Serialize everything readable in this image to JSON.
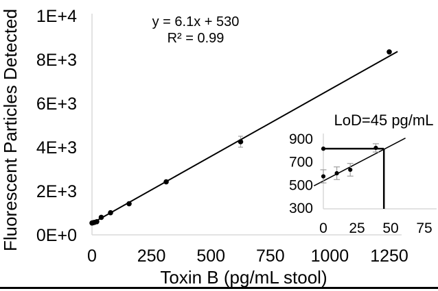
{
  "figure": {
    "y_axis_title": "Fluorescent Particles Detected",
    "x_axis_title": "Toxin B (pg/mL stool)",
    "annotation": {
      "equation": "y = 6.1x + 530",
      "r_squared": "R² = 0.99"
    },
    "inset_title": "LoD=45 pg/mL",
    "colors": {
      "data": "#000000",
      "axis": "#d9d9d9",
      "error_bar": "#9e9e9e",
      "background": "#ffffff",
      "border": "#000000"
    }
  },
  "chart_data": [
    {
      "name": "main-calibration-curve",
      "type": "scatter",
      "xlabel": "Toxin B (pg/mL stool)",
      "ylabel": "Fluorescent Particles Detected",
      "xlim": [
        0,
        1300
      ],
      "ylim": [
        0,
        10000
      ],
      "grid": false,
      "legend": "none",
      "x_ticks": [
        {
          "value": 0,
          "label": "0"
        },
        {
          "value": 250,
          "label": "250"
        },
        {
          "value": 500,
          "label": "500"
        },
        {
          "value": 750,
          "label": "750"
        },
        {
          "value": 1000,
          "label": "1000"
        },
        {
          "value": 1250,
          "label": "1250"
        }
      ],
      "y_ticks": [
        {
          "value": 0,
          "label": "0E+0"
        },
        {
          "value": 2000,
          "label": "2E+3"
        },
        {
          "value": 4000,
          "label": "4E+3"
        },
        {
          "value": 6000,
          "label": "6E+3"
        },
        {
          "value": 8000,
          "label": "8E+3"
        },
        {
          "value": 10000,
          "label": "1E+4"
        }
      ],
      "points": [
        {
          "x": 0,
          "y": 540
        },
        {
          "x": 5,
          "y": 555
        },
        {
          "x": 10,
          "y": 570
        },
        {
          "x": 20,
          "y": 600
        },
        {
          "x": 39,
          "y": 800
        },
        {
          "x": 78,
          "y": 1010
        },
        {
          "x": 156,
          "y": 1420
        },
        {
          "x": 312,
          "y": 2420
        },
        {
          "x": 625,
          "y": 4250,
          "err": 250
        },
        {
          "x": 1250,
          "y": 8350
        }
      ],
      "fit": {
        "slope": 6.1,
        "intercept": 530,
        "equation": "y = 6.1x + 530",
        "r_squared": "R² = 0.99",
        "x_range": [
          -8,
          1285
        ]
      }
    },
    {
      "name": "inset-lod-zoom",
      "type": "scatter",
      "title": "LoD=45 pg/mL",
      "xlim": [
        0,
        84
      ],
      "ylim": [
        290,
        940
      ],
      "grid": false,
      "legend": "none",
      "x_ticks": [
        {
          "value": 0,
          "label": "0"
        },
        {
          "value": 25,
          "label": "25"
        },
        {
          "value": 50,
          "label": "50"
        },
        {
          "value": 75,
          "label": "75"
        }
      ],
      "y_ticks": [
        {
          "value": 300,
          "label": "300"
        },
        {
          "value": 500,
          "label": "500"
        },
        {
          "value": 700,
          "label": "700"
        },
        {
          "value": 900,
          "label": "900"
        }
      ],
      "points": [
        {
          "x": 0,
          "y": 570,
          "err": 57
        },
        {
          "x": 10,
          "y": 597,
          "err": 55
        },
        {
          "x": 20,
          "y": 627,
          "err": 55
        },
        {
          "x": 39,
          "y": 817,
          "err": 36
        }
      ],
      "fit": {
        "slope": 6.1,
        "intercept": 530,
        "x_range": [
          -7,
          61
        ]
      },
      "lod": {
        "lod_x": 45,
        "signal_cutoff": 810
      }
    }
  ]
}
